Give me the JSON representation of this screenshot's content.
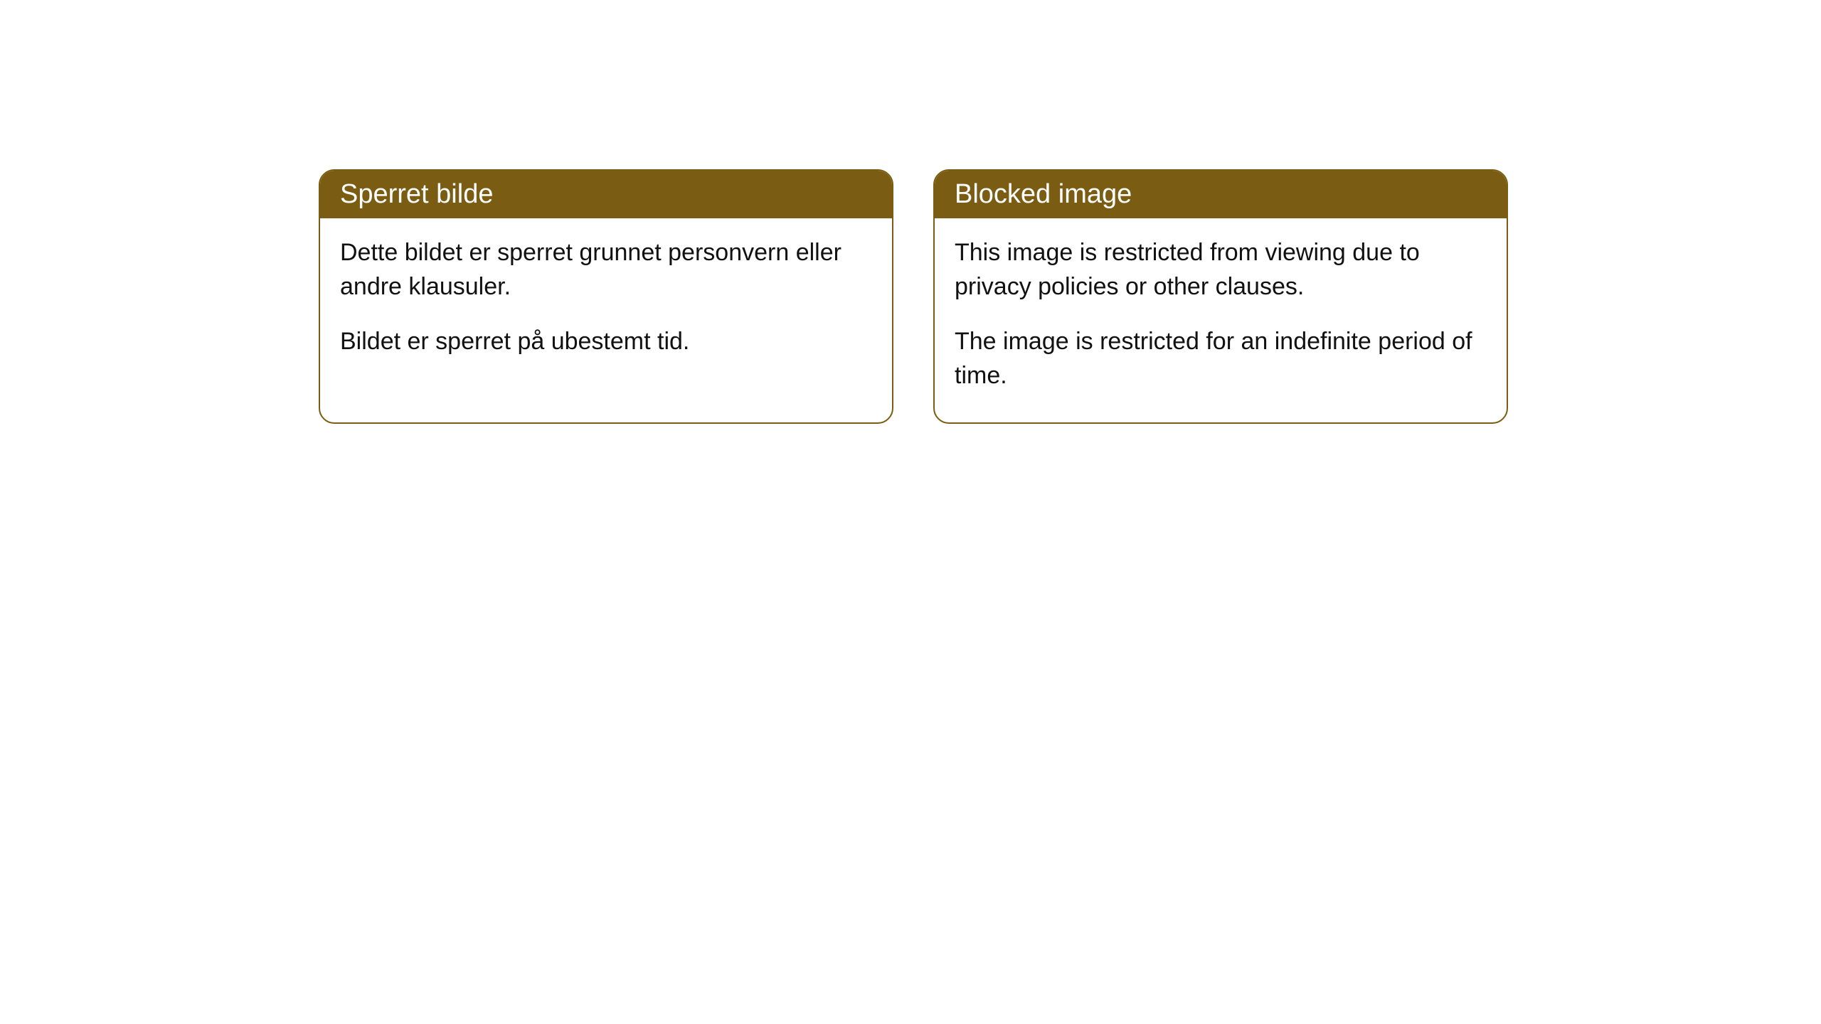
{
  "cards": [
    {
      "title": "Sperret bilde",
      "paragraph1": "Dette bildet er sperret grunnet personvern eller andre klausuler.",
      "paragraph2": "Bildet er sperret på ubestemt tid."
    },
    {
      "title": "Blocked image",
      "paragraph1": "This image is restricted from viewing due to privacy policies or other clauses.",
      "paragraph2": "The image is restricted for an indefinite period of time."
    }
  ],
  "styling": {
    "header_background": "#7a5d12",
    "header_text_color": "#ffffff",
    "card_border_color": "#7a5d12",
    "card_background": "#ffffff",
    "body_text_color": "#111111",
    "border_radius": 22,
    "header_fontsize": 38,
    "body_fontsize": 34
  }
}
